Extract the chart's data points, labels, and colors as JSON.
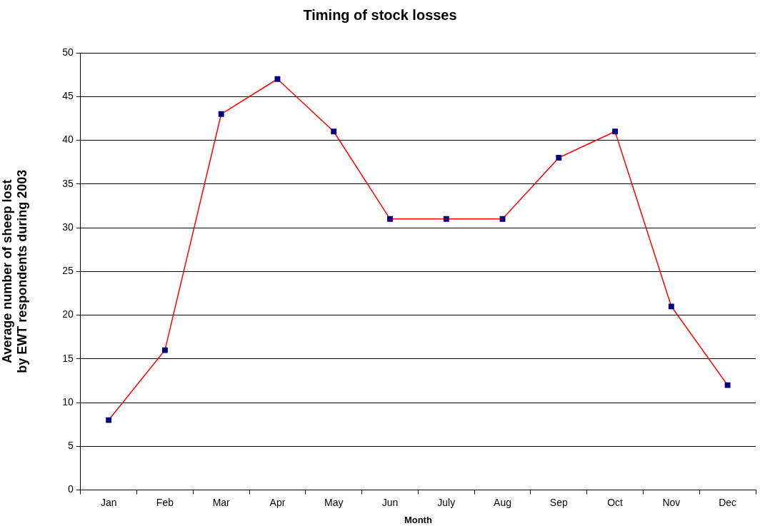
{
  "chart_data": {
    "type": "line",
    "title": "Timing of stock losses",
    "xlabel": "Month",
    "ylabel": "Average number of sheep lost\nby EWT respondents during 2003",
    "categories": [
      "Jan",
      "Feb",
      "Mar",
      "Apr",
      "May",
      "Jun",
      "July",
      "Aug",
      "Sep",
      "Oct",
      "Nov",
      "Dec"
    ],
    "series": [
      {
        "color": "#ff0000",
        "colors": [
          "#000080",
          "#000080",
          "#000080",
          "#000080",
          "#000080",
          "#000080",
          "#000080",
          "#000080",
          "#000080",
          "#000080",
          "#000080",
          "#000080"
        ],
        "values": [
          8,
          16,
          43,
          47,
          41,
          31,
          31,
          31,
          38,
          41,
          21,
          12
        ]
      }
    ],
    "marker": "square",
    "line_style": "solid",
    "ylim": [
      0,
      50
    ],
    "yticks": [
      0,
      5,
      10,
      15,
      20,
      25,
      30,
      35,
      40,
      45,
      50
    ],
    "grid": "y",
    "legend": false
  }
}
